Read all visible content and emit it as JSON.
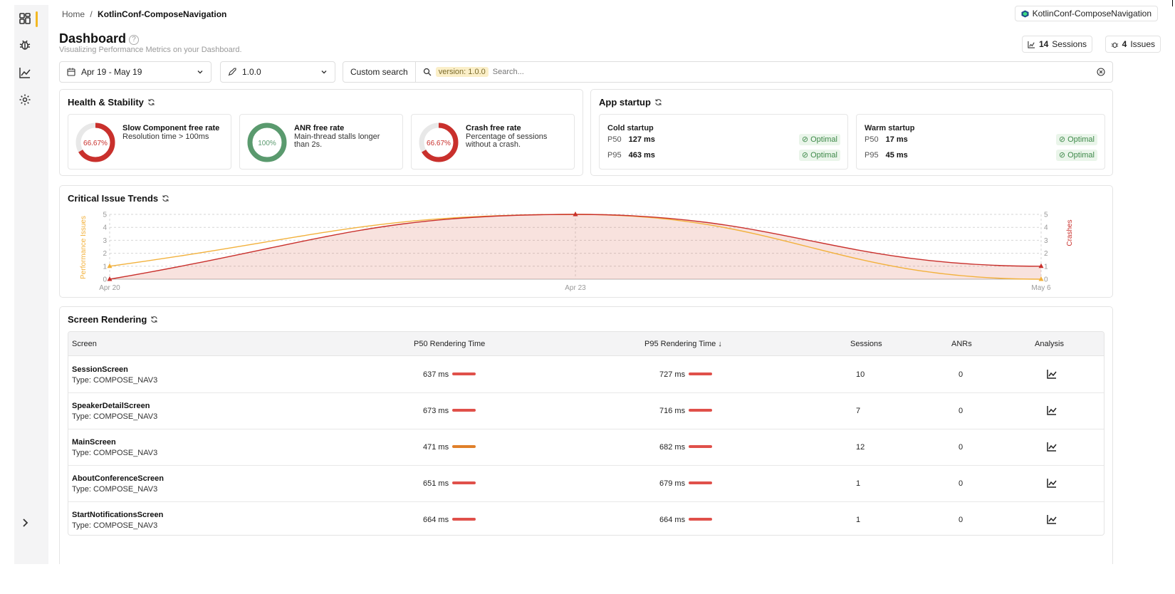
{
  "breadcrumb": {
    "home": "Home",
    "separator": "/",
    "current": "KotlinConf-ComposeNavigation"
  },
  "project_pill": {
    "label": "KotlinConf-ComposeNavigation",
    "icon": "app-logo-icon"
  },
  "header": {
    "title": "Dashboard",
    "help": "?",
    "subtitle": "Visualizing Performance Metrics on your Dashboard."
  },
  "counters": {
    "sessions_count": "14",
    "sessions_label": "Sessions",
    "issues_count": "4",
    "issues_label": "Issues"
  },
  "filters": {
    "date_range": "Apr 19 - May 19",
    "version": "1.0.0"
  },
  "search": {
    "button_label": "Custom search",
    "chip_key": "version:",
    "chip_value": "1.0.0",
    "placeholder": "Search..."
  },
  "health": {
    "title": "Health & Stability",
    "metrics": [
      {
        "value_label": "66.67%",
        "value": 66.67,
        "title": "Slow Component free rate",
        "desc": "Resolution time > 100ms",
        "color": "#c9302c"
      },
      {
        "value_label": "100%",
        "value": 100,
        "title": "ANR free rate",
        "desc": "Main-thread stalls longer than 2s.",
        "color": "#5a9a6e"
      },
      {
        "value_label": "66.67%",
        "value": 66.67,
        "title": "Crash free rate",
        "desc": "Percentage of sessions without a crash.",
        "color": "#c9302c"
      }
    ]
  },
  "startup": {
    "title": "App startup",
    "cold": {
      "title": "Cold startup",
      "p50_label": "P50",
      "p50": "127 ms",
      "p95_label": "P95",
      "p95": "463 ms",
      "p50_status": "Optimal",
      "p95_status": "Optimal"
    },
    "warm": {
      "title": "Warm startup",
      "p50_label": "P50",
      "p50": "17 ms",
      "p95_label": "P95",
      "p95": "45 ms",
      "p50_status": "Optimal",
      "p95_status": "Optimal"
    }
  },
  "trends": {
    "title": "Critical Issue Trends",
    "chart_data": {
      "type": "area",
      "categories": [
        "Apr 20",
        "Apr 23",
        "May 6"
      ],
      "series": [
        {
          "name": "Performance Issues",
          "values": [
            1,
            5,
            0
          ],
          "color": "#f2b13c"
        },
        {
          "name": "Crashes",
          "values": [
            0,
            5,
            1
          ],
          "color": "#c9302c"
        }
      ],
      "ylabel_left": "Performance Issues",
      "ylabel_right": "Crashes",
      "yticks": [
        "0",
        "1",
        "2",
        "3",
        "4",
        "5"
      ],
      "ylim": [
        0,
        5
      ],
      "grid": true
    }
  },
  "rendering": {
    "title": "Screen Rendering",
    "columns": [
      "Screen",
      "P50 Rendering Time",
      "P95 Rendering Time",
      "Sessions",
      "ANRs",
      "Analysis"
    ],
    "sort_icon": "arrow-down-icon",
    "rows": [
      {
        "name": "SessionScreen",
        "type": "Type: COMPOSE_NAV3",
        "p50": "637 ms",
        "p50_color": "#e0504a",
        "p95": "727 ms",
        "p95_color": "#e0504a",
        "sessions": "10",
        "anrs": "0"
      },
      {
        "name": "SpeakerDetailScreen",
        "type": "Type: COMPOSE_NAV3",
        "p50": "673 ms",
        "p50_color": "#e0504a",
        "p95": "716 ms",
        "p95_color": "#e0504a",
        "sessions": "7",
        "anrs": "0"
      },
      {
        "name": "MainScreen",
        "type": "Type: COMPOSE_NAV3",
        "p50": "471 ms",
        "p50_color": "#e0802a",
        "p95": "682 ms",
        "p95_color": "#e0504a",
        "sessions": "12",
        "anrs": "0"
      },
      {
        "name": "AboutConferenceScreen",
        "type": "Type: COMPOSE_NAV3",
        "p50": "651 ms",
        "p50_color": "#e0504a",
        "p95": "679 ms",
        "p95_color": "#e0504a",
        "sessions": "1",
        "anrs": "0"
      },
      {
        "name": "StartNotificationsScreen",
        "type": "Type: COMPOSE_NAV3",
        "p50": "664 ms",
        "p50_color": "#e0504a",
        "p95": "664 ms",
        "p95_color": "#e0504a",
        "sessions": "1",
        "anrs": "0"
      }
    ]
  }
}
